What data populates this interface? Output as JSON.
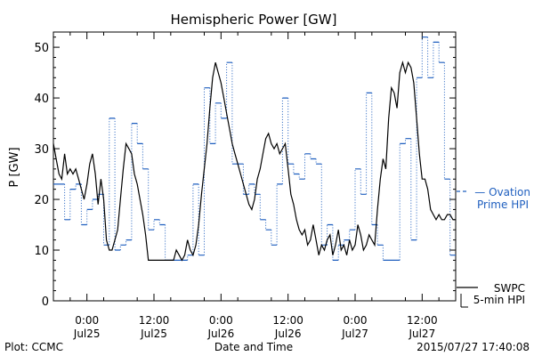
{
  "chart_data": {
    "type": "line",
    "title": "Hemispheric Power [GW]",
    "ylabel": "P [GW]",
    "xlabel": "Date and Time",
    "ylim": [
      0,
      53
    ],
    "yticks": [
      0,
      10,
      20,
      30,
      40,
      50
    ],
    "x_unit": "hours since 2015/07/24 18:00",
    "xlim": [
      0,
      72
    ],
    "xticks": [
      {
        "x": 6,
        "time": "0:00",
        "date": "Jul25"
      },
      {
        "x": 18,
        "time": "12:00",
        "date": "Jul25"
      },
      {
        "x": 30,
        "time": "0:00",
        "date": "Jul26"
      },
      {
        "x": 42,
        "time": "12:00",
        "date": "Jul26"
      },
      {
        "x": 54,
        "time": "0:00",
        "date": "Jul27"
      },
      {
        "x": 66,
        "time": "12:00",
        "date": "Jul27"
      }
    ],
    "grid": false,
    "legend": [
      {
        "name": "Ovation Prime HPI",
        "lines": [
          "Ovation",
          "Prime HPI"
        ],
        "style": "dashed",
        "color": "#1f5fbf"
      },
      {
        "name": "SWPC 5-min HPI",
        "lines": [
          "SWPC",
          "5-min HPI"
        ],
        "style": "solid",
        "color": "#000000"
      }
    ],
    "series": [
      {
        "name": "Ovation Prime HPI",
        "style": "step-dotted",
        "color": "#1f5fbf",
        "x": [
          0,
          1,
          2,
          3,
          4,
          5,
          6,
          7,
          8,
          9,
          10,
          11,
          12,
          13,
          14,
          15,
          16,
          17,
          18,
          19,
          20,
          21,
          22,
          23,
          24,
          25,
          26,
          27,
          28,
          29,
          30,
          31,
          32,
          33,
          34,
          35,
          36,
          37,
          38,
          39,
          40,
          41,
          42,
          43,
          44,
          45,
          46,
          47,
          48,
          49,
          50,
          51,
          52,
          53,
          54,
          55,
          56,
          57,
          58,
          59,
          60,
          61,
          62,
          63,
          64,
          65,
          66,
          67,
          68,
          69,
          70,
          71
        ],
        "values": [
          23,
          23,
          16,
          22,
          23,
          15,
          18,
          20,
          21,
          11,
          36,
          10,
          11,
          12,
          35,
          31,
          26,
          14,
          16,
          15,
          8,
          8,
          8,
          8,
          9,
          23,
          9,
          42,
          31,
          39,
          36,
          47,
          27,
          27,
          21,
          23,
          21,
          16,
          14,
          11,
          23,
          40,
          27,
          25,
          24,
          29,
          28,
          27,
          11,
          15,
          8,
          11,
          12,
          14,
          26,
          21,
          41,
          15,
          11,
          8,
          8,
          8,
          31,
          32,
          12,
          44,
          52,
          44,
          51,
          47,
          24,
          9
        ]
      },
      {
        "name": "SWPC 5-min HPI",
        "style": "solid",
        "color": "#000000",
        "x": [
          0,
          0.5,
          1,
          1.5,
          2,
          2.5,
          3,
          3.5,
          4,
          4.5,
          5,
          5.5,
          6,
          6.5,
          7,
          7.5,
          8,
          8.5,
          9,
          9.5,
          10,
          10.5,
          11,
          11.5,
          12,
          12.5,
          13,
          13.5,
          14,
          14.5,
          15,
          15.5,
          16,
          16.5,
          17,
          17.5,
          18,
          18.5,
          19,
          19.5,
          20,
          20.5,
          21,
          21.5,
          22,
          22.5,
          23,
          23.5,
          24,
          24.5,
          25,
          25.5,
          26,
          26.5,
          27,
          27.5,
          28,
          28.5,
          29,
          29.5,
          30,
          30.5,
          31,
          31.5,
          32,
          32.5,
          33,
          33.5,
          34,
          34.5,
          35,
          35.5,
          36,
          36.5,
          37,
          37.5,
          38,
          38.5,
          39,
          39.5,
          40,
          40.5,
          41,
          41.5,
          42,
          42.5,
          43,
          43.5,
          44,
          44.5,
          45,
          45.5,
          46,
          46.5,
          47,
          47.5,
          48,
          48.5,
          49,
          49.5,
          50,
          50.5,
          51,
          51.5,
          52,
          52.5,
          53,
          53.5,
          54,
          54.5,
          55,
          55.5,
          56,
          56.5,
          57,
          57.5,
          58,
          58.5,
          59,
          59.5,
          60,
          60.5,
          61,
          61.5,
          62,
          62.5,
          63,
          63.5,
          64,
          64.5,
          65,
          65.5,
          66,
          66.5,
          67,
          67.5,
          68,
          68.5,
          69,
          69.5,
          70,
          70.5,
          71,
          71.5,
          72
        ],
        "values": [
          31,
          28,
          25,
          24,
          29,
          25,
          26,
          25,
          26,
          24,
          22,
          20,
          23,
          27,
          29,
          25,
          19,
          24,
          20,
          12,
          10,
          10,
          12,
          14,
          20,
          26,
          31,
          30,
          29,
          25,
          23,
          20,
          17,
          13,
          8,
          8,
          8,
          8,
          8,
          8,
          8,
          8,
          8,
          8,
          10,
          9,
          8,
          9,
          12,
          10,
          9,
          11,
          15,
          21,
          26,
          31,
          38,
          44,
          47,
          45,
          43,
          40,
          37,
          34,
          31,
          29,
          27,
          25,
          23,
          21,
          19,
          18,
          20,
          24,
          26,
          29,
          32,
          33,
          31,
          30,
          31,
          29,
          30,
          31,
          26,
          21,
          19,
          16,
          14,
          13,
          14,
          11,
          12,
          15,
          12,
          9,
          11,
          10,
          12,
          13,
          9,
          11,
          14,
          10,
          11,
          9,
          12,
          10,
          11,
          15,
          13,
          10,
          11,
          13,
          12,
          11,
          18,
          24,
          28,
          26,
          36,
          42,
          41,
          38,
          45,
          47,
          45,
          47,
          46,
          43,
          36,
          29,
          24,
          24,
          22,
          18,
          17,
          16,
          17,
          16,
          16,
          17,
          17,
          16,
          16
        ]
      }
    ]
  },
  "footer": {
    "left": "Plot: CCMC",
    "right": "2015/07/27 17:40:08"
  }
}
